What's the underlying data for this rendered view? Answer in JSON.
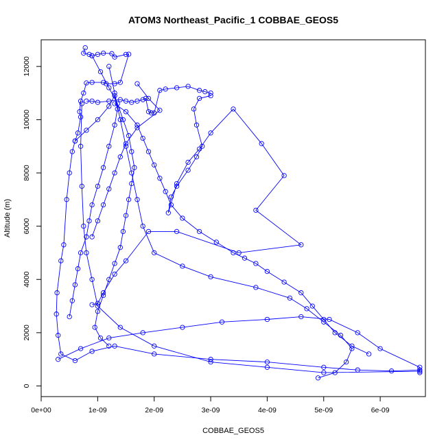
{
  "chart_data": {
    "type": "line",
    "title": "ATOM3 Northeast_Pacific_1 COBBAE_GEOS5",
    "xlabel": "COBBAE_GEOS5",
    "ylabel": "Altitude (m)",
    "xlim": [
      0,
      6.8e-09
    ],
    "ylim": [
      -400,
      13000
    ],
    "x_ticks": [
      0,
      1e-09,
      2e-09,
      3e-09,
      4e-09,
      5e-09,
      6e-09
    ],
    "x_tick_labels": [
      "0e+00",
      "1e-09",
      "2e-09",
      "3e-09",
      "4e-09",
      "5e-09",
      "6e-09"
    ],
    "y_ticks": [
      0,
      2000,
      4000,
      6000,
      8000,
      10000,
      12000
    ],
    "y_tick_labels": [
      "0",
      "2000",
      "4000",
      "6000",
      "8000",
      "10000",
      "12000"
    ],
    "grid": false,
    "legend": "none",
    "series_color": "#0000ff",
    "series": [
      {
        "x": [
          7.8e-10,
          7.5e-10,
          8.5e-10,
          9e-10,
          1e-09,
          1.1e-09,
          1.25e-09,
          1.3e-09,
          1.5e-09,
          1.55e-09,
          1.4e-09,
          1.3e-09,
          1.15e-09,
          1.1e-09,
          9e-10,
          8e-10,
          7.5e-10,
          7e-10,
          6.8e-10,
          7e-10,
          6.5e-10,
          6e-10,
          5.5e-10,
          5e-10,
          4.5e-10,
          4e-10,
          3.5e-10,
          2.8e-10,
          2.7e-10,
          3e-10,
          3.5e-10,
          6e-10,
          9e-10,
          1.3e-09,
          2e-09,
          3e-09,
          4e-09,
          5e-09,
          5.6e-09,
          6.2e-09,
          6.7e-09,
          6.7e-09
        ],
        "y": [
          12700,
          12500,
          12450,
          12400,
          12450,
          12500,
          12480,
          12350,
          12450,
          12460,
          11400,
          11350,
          11350,
          11400,
          11400,
          11380,
          11000,
          10700,
          10300,
          10100,
          9500,
          9200,
          8800,
          8000,
          7000,
          5300,
          4700,
          3500,
          2700,
          1900,
          1200,
          950,
          1300,
          1500,
          1200,
          1000,
          900,
          700,
          600,
          560,
          600,
          500
        ]
      },
      {
        "x": [
          3e-10,
          7e-10,
          1.2e-09,
          1.8e-09,
          2.5e-09,
          3.2e-09,
          4e-09,
          4.6e-09,
          5.1e-09,
          5.6e-09,
          6e-09,
          6.7e-09,
          6.7e-09,
          5e-09,
          4e-09,
          3e-09,
          2e-09,
          1.4e-09,
          1e-09,
          9e-10,
          8e-10,
          7.5e-10,
          7.2e-10,
          7e-10,
          7.2e-10
        ],
        "y": [
          1000,
          1400,
          1800,
          2000,
          2200,
          2400,
          2500,
          2600,
          2500,
          2000,
          1400,
          700,
          550,
          500,
          700,
          900,
          1500,
          2200,
          3000,
          4000,
          5000,
          6000,
          7500,
          9000,
          10600
        ]
      },
      {
        "x": [
          8e-10,
          9e-10,
          1e-09,
          1.2e-09,
          1.4e-09,
          1.5e-09,
          1.6e-09,
          1.7e-09,
          1.8e-09,
          1.85e-09,
          1.9e-09,
          1.95e-09,
          2e-09,
          2.1e-09,
          2.2e-09,
          2.4e-09,
          2.6e-09,
          2.8e-09,
          2.9e-09,
          3e-09
        ],
        "y": [
          10700,
          10700,
          10650,
          10700,
          10750,
          10700,
          10650,
          10700,
          10750,
          10800,
          10300,
          10250,
          10250,
          11100,
          11150,
          11200,
          11250,
          11100,
          11050,
          11000
        ]
      },
      {
        "x": [
          3e-09,
          2.8e-09,
          2.7e-09,
          2.75e-09,
          2.85e-09,
          2.75e-09,
          2.6e-09,
          2.4e-09,
          2.3e-09,
          2.25e-09,
          2.4e-09,
          2.6e-09,
          2.8e-09,
          3e-09,
          3.4e-09,
          3.9e-09,
          4.3e-09,
          3.8e-09,
          4.6e-09,
          3.5e-09,
          2.4e-09,
          1.9e-09,
          1.5e-09,
          1.3e-09,
          1.1e-09,
          1e-09,
          9e-10
        ],
        "y": [
          10900,
          10800,
          10400,
          9800,
          9000,
          8600,
          8100,
          7500,
          7100,
          6500,
          7600,
          8400,
          8900,
          9500,
          10400,
          9100,
          7900,
          6600,
          5300,
          5000,
          5800,
          5800,
          4700,
          4200,
          3500,
          3100,
          3050
        ]
      },
      {
        "x": [
          1.3e-09,
          1.5e-09,
          1.7e-09,
          1.8e-09,
          1.9e-09,
          2e-09,
          2.1e-09,
          2.2e-09,
          2.3e-09,
          2.5e-09,
          2.8e-09,
          3.1e-09,
          3.4e-09,
          3.6e-09,
          3.8e-09,
          4e-09,
          4.3e-09,
          4.6e-09,
          4.8e-09,
          5e-09,
          5.2e-09,
          5.5e-09,
          5.8e-09
        ],
        "y": [
          10600,
          10300,
          9800,
          9300,
          8800,
          8300,
          7800,
          7300,
          6800,
          6300,
          5800,
          5400,
          5000,
          4800,
          4600,
          4300,
          3900,
          3500,
          3000,
          2500,
          2000,
          1500,
          1200
        ]
      },
      {
        "x": [
          1.2e-09,
          1.3e-09,
          1.4e-09,
          1.5e-09,
          1.6e-09,
          1.7e-09,
          1.8e-09,
          2e-09,
          2.5e-09,
          3e-09,
          3.8e-09,
          4.4e-09,
          4.7e-09,
          5e-09,
          5.3e-09,
          5.5e-09,
          5.4e-09,
          5.2e-09,
          4.9e-09
        ],
        "y": [
          12000,
          11000,
          10000,
          9000,
          8000,
          7000,
          6000,
          5000,
          4500,
          4100,
          3700,
          3300,
          2900,
          2400,
          1900,
          1400,
          900,
          500,
          300
        ]
      },
      {
        "x": [
          9e-10,
          1.05e-09,
          1.2e-09,
          1.35e-09,
          1.45e-09,
          1.55e-09,
          1.6e-09,
          1.65e-09,
          1.6e-09,
          1.55e-09,
          1.5e-09,
          1.45e-09,
          1.4e-09,
          1.3e-09,
          1.2e-09,
          1.1e-09,
          1e-09,
          9.5e-10,
          1.05e-09,
          1.2e-09
        ],
        "y": [
          12400,
          11800,
          11200,
          10600,
          10000,
          9400,
          8800,
          8200,
          7600,
          7000,
          6400,
          5800,
          5200,
          4600,
          4000,
          3400,
          2800,
          2200,
          1800,
          1500
        ]
      },
      {
        "x": [
          6e-10,
          8e-10,
          1e-09,
          1.2e-09,
          1.3e-09,
          1.35e-09,
          1.3e-09,
          1.2e-09,
          1.1e-09,
          1e-09,
          9e-10,
          8.5e-10,
          8e-10,
          7e-10,
          6.5e-10,
          6e-10,
          5.5e-10,
          5e-10
        ],
        "y": [
          9200,
          9600,
          10000,
          10500,
          10900,
          10400,
          9800,
          9000,
          8200,
          7500,
          6800,
          6200,
          5600,
          5000,
          4400,
          3800,
          3200,
          2600
        ]
      },
      {
        "x": [
          1.7e-09,
          1.9e-09,
          2.1e-09,
          1.7e-09,
          1.5e-09,
          1.4e-09,
          1.3e-09,
          1.2e-09,
          1.1e-09,
          1e-09,
          9e-10
        ],
        "y": [
          11350,
          10800,
          10350,
          9700,
          9100,
          8600,
          8000,
          7400,
          6800,
          6200,
          5600
        ]
      }
    ]
  }
}
